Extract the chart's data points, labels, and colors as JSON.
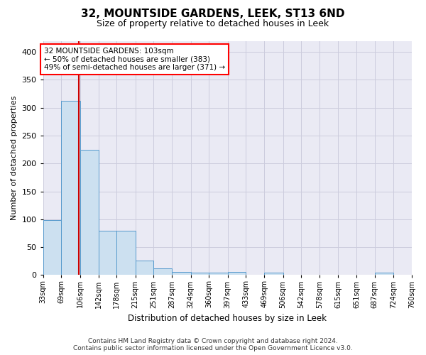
{
  "title": "32, MOUNTSIDE GARDENS, LEEK, ST13 6ND",
  "subtitle": "Size of property relative to detached houses in Leek",
  "xlabel": "Distribution of detached houses by size in Leek",
  "ylabel": "Number of detached properties",
  "footer_line1": "Contains HM Land Registry data © Crown copyright and database right 2024.",
  "footer_line2": "Contains public sector information licensed under the Open Government Licence v3.0.",
  "bin_edges": [
    33,
    69,
    106,
    142,
    178,
    215,
    251,
    287,
    324,
    360,
    397,
    433,
    469,
    506,
    542,
    578,
    615,
    651,
    687,
    724,
    760
  ],
  "bin_labels": [
    "33sqm",
    "69sqm",
    "106sqm",
    "142sqm",
    "178sqm",
    "215sqm",
    "251sqm",
    "287sqm",
    "324sqm",
    "360sqm",
    "397sqm",
    "433sqm",
    "469sqm",
    "506sqm",
    "542sqm",
    "578sqm",
    "615sqm",
    "651sqm",
    "687sqm",
    "724sqm",
    "760sqm"
  ],
  "counts": [
    98,
    312,
    224,
    80,
    80,
    26,
    12,
    6,
    4,
    4,
    6,
    0,
    4,
    0,
    0,
    0,
    0,
    0,
    4,
    0,
    0
  ],
  "bar_color": "#cce0f0",
  "bar_edge_color": "#5599cc",
  "red_line_x": 103,
  "annotation_line1": "32 MOUNTSIDE GARDENS: 103sqm",
  "annotation_line2": "← 50% of detached houses are smaller (383)",
  "annotation_line3": "49% of semi-detached houses are larger (371) →",
  "annotation_box_color": "white",
  "annotation_box_edge_color": "red",
  "red_line_color": "#cc0000",
  "grid_color": "#ccccdd",
  "bg_color": "#eaeaf4",
  "ylim": [
    0,
    420
  ],
  "yticks": [
    0,
    50,
    100,
    150,
    200,
    250,
    300,
    350,
    400
  ]
}
